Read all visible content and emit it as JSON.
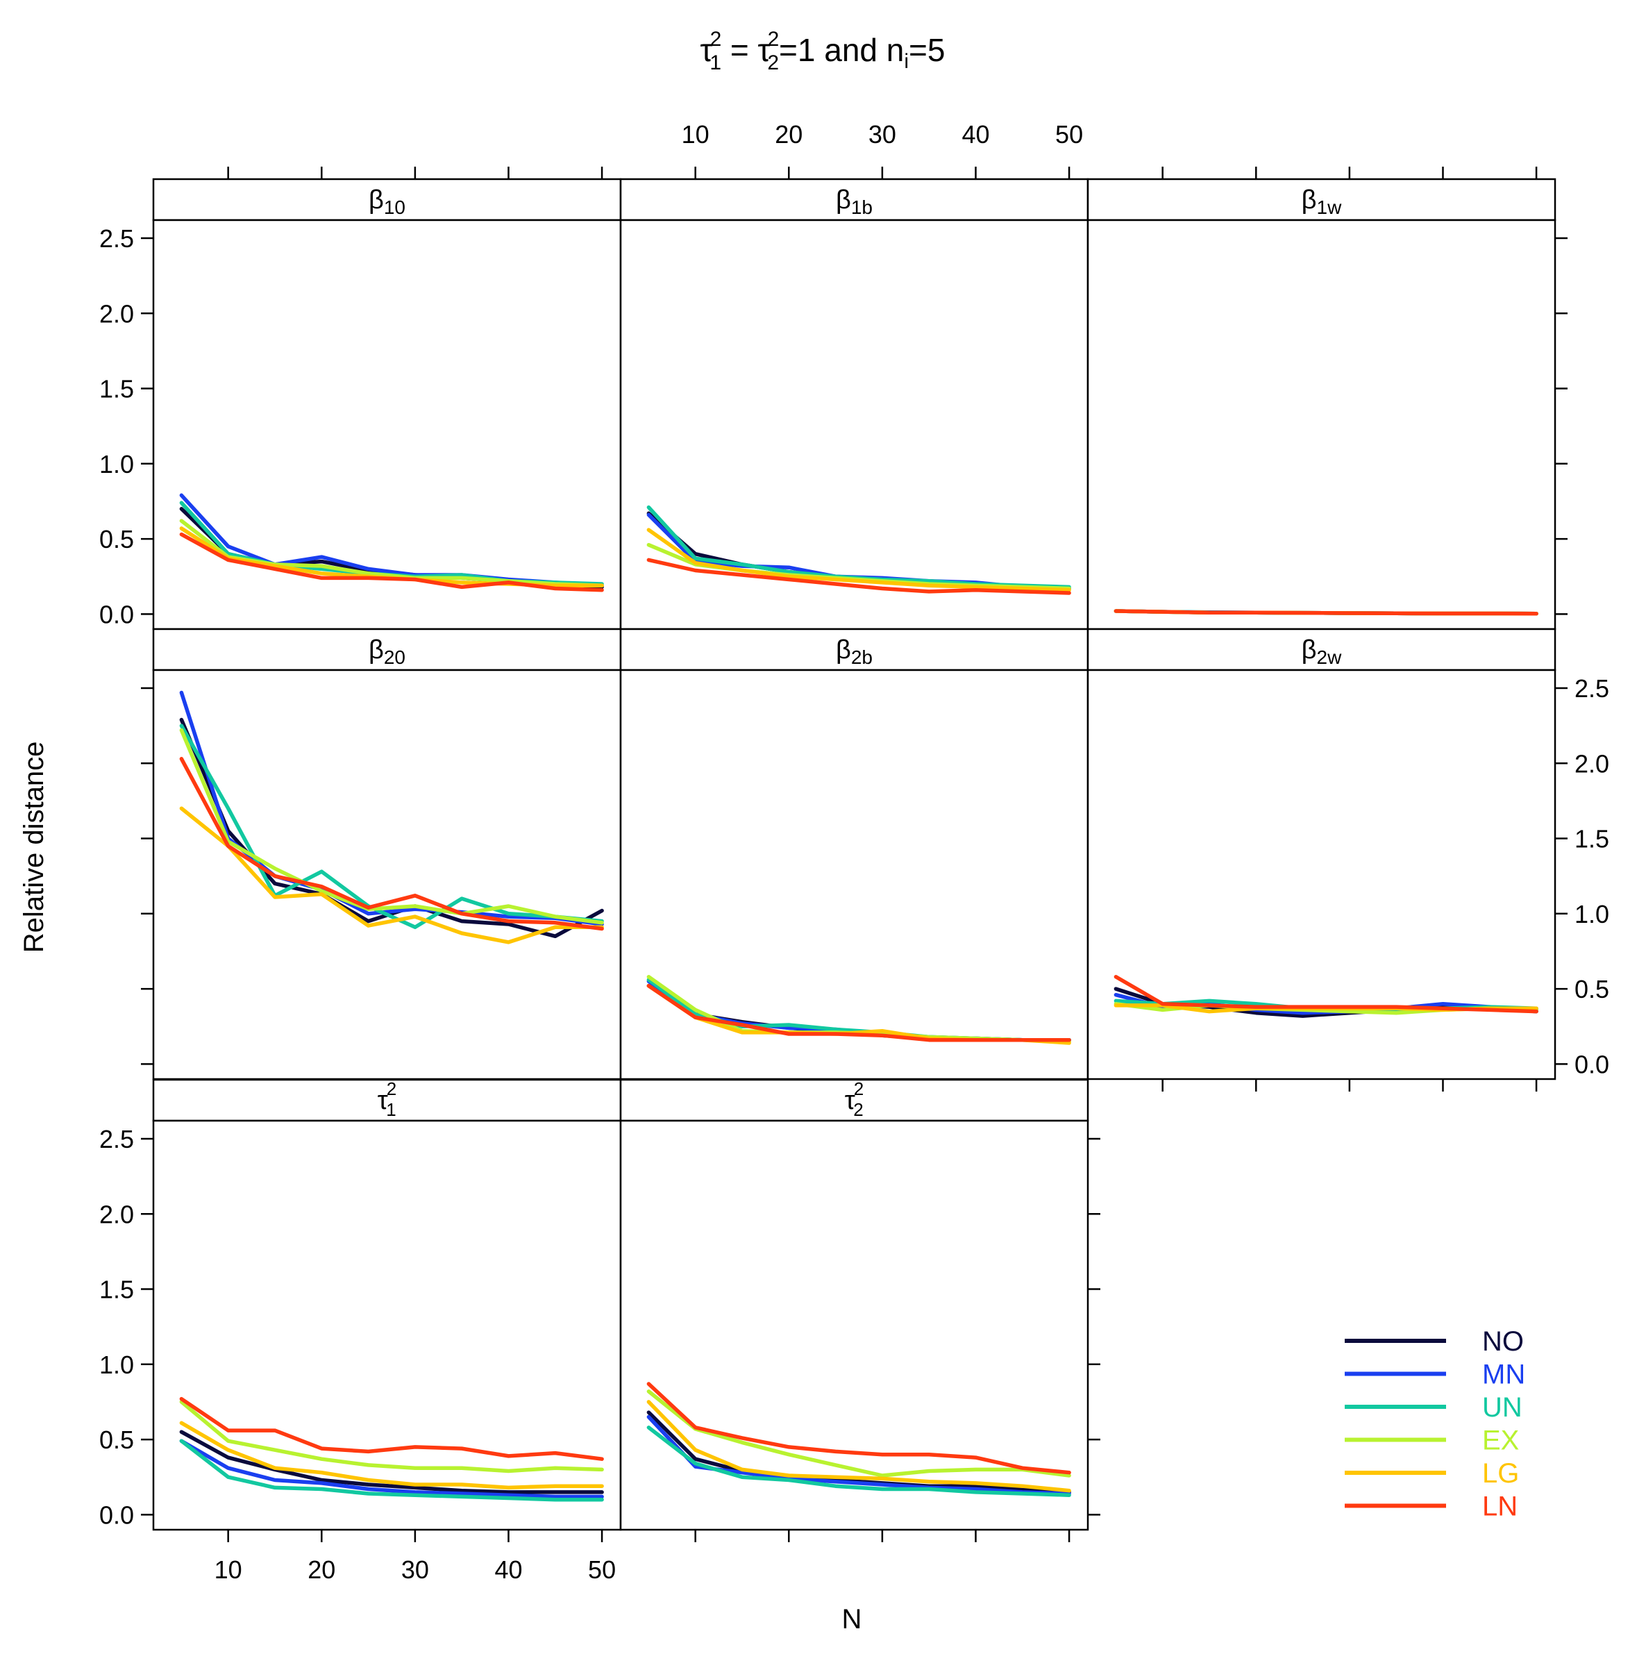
{
  "title": {
    "prefix": "τ",
    "sup1": "2",
    "sub1": "1",
    "equals": " = ",
    "sup2": "2",
    "sub2": "2",
    "mid": "=1 and n",
    "sub3": "i",
    "suffix": "=5"
  },
  "xlabel": "N",
  "ylabel": "Relative distance",
  "x_ticks": [
    10,
    20,
    30,
    40,
    50
  ],
  "y_ticks": [
    "0.0",
    "0.5",
    "1.0",
    "1.5",
    "2.0",
    "2.5"
  ],
  "legend": {
    "entries": [
      {
        "label": "NO",
        "color": "#0a0a3c"
      },
      {
        "label": "MN",
        "color": "#1a3ff0"
      },
      {
        "label": "UN",
        "color": "#12c8a0"
      },
      {
        "label": "EX",
        "color": "#b8f230"
      },
      {
        "label": "LG",
        "color": "#ffc400"
      },
      {
        "label": "LN",
        "color": "#ff3a10"
      }
    ]
  },
  "chart_data": {
    "type": "line",
    "x": [
      5,
      10,
      15,
      20,
      25,
      30,
      35,
      40,
      45,
      50
    ],
    "xlim": [
      2,
      52
    ],
    "ylim": [
      -0.1,
      2.62
    ],
    "panels": [
      {
        "id": "b10",
        "sym": "β",
        "sub": "10",
        "sup": "",
        "series": {
          "NO": [
            0.7,
            0.4,
            0.33,
            0.35,
            0.29,
            0.26,
            0.24,
            0.22,
            0.2,
            0.18
          ],
          "MN": [
            0.79,
            0.45,
            0.33,
            0.38,
            0.3,
            0.26,
            0.26,
            0.23,
            0.21,
            0.19
          ],
          "UN": [
            0.74,
            0.4,
            0.33,
            0.3,
            0.27,
            0.25,
            0.26,
            0.22,
            0.21,
            0.2
          ],
          "EX": [
            0.62,
            0.38,
            0.33,
            0.32,
            0.27,
            0.24,
            0.24,
            0.22,
            0.2,
            0.19
          ],
          "LG": [
            0.57,
            0.37,
            0.32,
            0.27,
            0.25,
            0.23,
            0.21,
            0.2,
            0.19,
            0.19
          ],
          "LN": [
            0.53,
            0.36,
            0.3,
            0.24,
            0.24,
            0.23,
            0.18,
            0.21,
            0.17,
            0.16
          ]
        }
      },
      {
        "id": "b1b",
        "sym": "β",
        "sub": "1b",
        "sup": "",
        "series": {
          "NO": [
            0.67,
            0.4,
            0.33,
            0.28,
            0.25,
            0.23,
            0.21,
            0.19,
            0.18,
            0.17
          ],
          "MN": [
            0.66,
            0.35,
            0.32,
            0.31,
            0.25,
            0.24,
            0.22,
            0.21,
            0.18,
            0.17
          ],
          "UN": [
            0.71,
            0.37,
            0.33,
            0.28,
            0.25,
            0.23,
            0.22,
            0.2,
            0.19,
            0.18
          ],
          "EX": [
            0.46,
            0.33,
            0.29,
            0.26,
            0.24,
            0.22,
            0.2,
            0.19,
            0.18,
            0.17
          ],
          "LG": [
            0.56,
            0.34,
            0.29,
            0.25,
            0.23,
            0.21,
            0.19,
            0.18,
            0.17,
            0.16
          ],
          "LN": [
            0.36,
            0.29,
            0.26,
            0.23,
            0.2,
            0.17,
            0.15,
            0.16,
            0.15,
            0.14
          ]
        }
      },
      {
        "id": "b1w",
        "sym": "β",
        "sub": "1w",
        "sup": "",
        "series": {
          "NO": [
            0.02,
            0.015,
            0.01,
            0.01,
            0.008,
            0.006,
            0.005,
            0.004,
            0.004,
            0.003
          ],
          "MN": [
            0.02,
            0.015,
            0.012,
            0.01,
            0.008,
            0.006,
            0.005,
            0.004,
            0.004,
            0.003
          ],
          "UN": [
            0.02,
            0.015,
            0.011,
            0.01,
            0.008,
            0.006,
            0.005,
            0.004,
            0.004,
            0.003
          ],
          "EX": [
            0.02,
            0.015,
            0.01,
            0.01,
            0.008,
            0.006,
            0.005,
            0.004,
            0.004,
            0.003
          ],
          "LG": [
            0.02,
            0.015,
            0.01,
            0.01,
            0.008,
            0.006,
            0.005,
            0.004,
            0.004,
            0.003
          ],
          "LN": [
            0.02,
            0.015,
            0.01,
            0.01,
            0.008,
            0.006,
            0.005,
            0.004,
            0.004,
            0.003
          ]
        }
      },
      {
        "id": "b20",
        "sym": "β",
        "sub": "20",
        "sup": "",
        "series": {
          "NO": [
            2.29,
            1.55,
            1.2,
            1.13,
            0.95,
            1.05,
            0.95,
            0.93,
            0.85,
            1.02
          ],
          "MN": [
            2.47,
            1.5,
            1.25,
            1.16,
            1.0,
            1.03,
            1.01,
            0.98,
            0.97,
            0.93
          ],
          "UN": [
            2.25,
            1.7,
            1.12,
            1.28,
            1.05,
            0.91,
            1.1,
            1.0,
            0.98,
            0.95
          ],
          "EX": [
            2.22,
            1.48,
            1.3,
            1.15,
            1.03,
            1.05,
            1.0,
            1.05,
            0.98,
            0.94
          ],
          "LG": [
            1.7,
            1.45,
            1.11,
            1.13,
            0.92,
            0.98,
            0.87,
            0.81,
            0.91,
            0.91
          ],
          "LN": [
            2.03,
            1.45,
            1.25,
            1.18,
            1.04,
            1.12,
            1.0,
            0.95,
            0.94,
            0.9
          ]
        }
      },
      {
        "id": "b2b",
        "sym": "β",
        "sub": "2b",
        "sup": "",
        "series": {
          "NO": [
            0.52,
            0.33,
            0.28,
            0.24,
            0.22,
            0.19,
            0.17,
            0.17,
            0.16,
            0.16
          ],
          "MN": [
            0.55,
            0.33,
            0.27,
            0.24,
            0.23,
            0.2,
            0.18,
            0.17,
            0.16,
            0.16
          ],
          "UN": [
            0.56,
            0.33,
            0.25,
            0.26,
            0.23,
            0.21,
            0.18,
            0.17,
            0.16,
            0.16
          ],
          "EX": [
            0.58,
            0.36,
            0.22,
            0.21,
            0.21,
            0.2,
            0.18,
            0.17,
            0.16,
            0.15
          ],
          "LG": [
            0.52,
            0.31,
            0.21,
            0.21,
            0.2,
            0.22,
            0.17,
            0.16,
            0.16,
            0.14
          ],
          "LN": [
            0.52,
            0.31,
            0.26,
            0.2,
            0.2,
            0.19,
            0.16,
            0.16,
            0.16,
            0.16
          ]
        }
      },
      {
        "id": "b2w",
        "sym": "β",
        "sub": "2w",
        "sup": "",
        "series": {
          "NO": [
            0.5,
            0.4,
            0.38,
            0.34,
            0.32,
            0.34,
            0.36,
            0.38,
            0.37,
            0.35
          ],
          "MN": [
            0.46,
            0.38,
            0.4,
            0.36,
            0.34,
            0.35,
            0.37,
            0.4,
            0.38,
            0.36
          ],
          "UN": [
            0.42,
            0.4,
            0.42,
            0.4,
            0.37,
            0.36,
            0.36,
            0.37,
            0.38,
            0.37
          ],
          "EX": [
            0.4,
            0.36,
            0.39,
            0.37,
            0.36,
            0.35,
            0.34,
            0.36,
            0.37,
            0.36
          ],
          "LG": [
            0.39,
            0.39,
            0.35,
            0.37,
            0.37,
            0.37,
            0.37,
            0.36,
            0.37,
            0.37
          ],
          "LN": [
            0.58,
            0.4,
            0.39,
            0.38,
            0.38,
            0.38,
            0.38,
            0.37,
            0.36,
            0.35
          ]
        }
      },
      {
        "id": "t1",
        "sym": "τ",
        "sub": "1",
        "sup": "2",
        "series": {
          "NO": [
            0.55,
            0.38,
            0.3,
            0.23,
            0.2,
            0.18,
            0.16,
            0.15,
            0.15,
            0.15
          ],
          "MN": [
            0.49,
            0.31,
            0.23,
            0.21,
            0.17,
            0.15,
            0.14,
            0.13,
            0.12,
            0.12
          ],
          "UN": [
            0.49,
            0.25,
            0.18,
            0.17,
            0.14,
            0.13,
            0.12,
            0.11,
            0.1,
            0.1
          ],
          "EX": [
            0.75,
            0.49,
            0.43,
            0.37,
            0.33,
            0.31,
            0.31,
            0.29,
            0.31,
            0.3
          ],
          "LG": [
            0.61,
            0.43,
            0.31,
            0.28,
            0.23,
            0.2,
            0.2,
            0.18,
            0.19,
            0.19
          ],
          "LN": [
            0.77,
            0.56,
            0.56,
            0.44,
            0.42,
            0.45,
            0.44,
            0.39,
            0.41,
            0.37
          ]
        }
      },
      {
        "id": "t2",
        "sym": "τ",
        "sub": "2",
        "sup": "2",
        "series": {
          "NO": [
            0.68,
            0.37,
            0.29,
            0.25,
            0.23,
            0.21,
            0.19,
            0.19,
            0.17,
            0.15
          ],
          "MN": [
            0.65,
            0.32,
            0.28,
            0.24,
            0.22,
            0.2,
            0.18,
            0.17,
            0.15,
            0.14
          ],
          "UN": [
            0.58,
            0.34,
            0.25,
            0.23,
            0.19,
            0.17,
            0.17,
            0.15,
            0.14,
            0.13
          ],
          "EX": [
            0.82,
            0.57,
            0.48,
            0.4,
            0.33,
            0.26,
            0.29,
            0.3,
            0.3,
            0.26
          ],
          "LG": [
            0.75,
            0.43,
            0.3,
            0.26,
            0.25,
            0.24,
            0.22,
            0.21,
            0.19,
            0.16
          ],
          "LN": [
            0.87,
            0.58,
            0.51,
            0.45,
            0.42,
            0.4,
            0.4,
            0.38,
            0.31,
            0.28
          ]
        }
      }
    ]
  }
}
